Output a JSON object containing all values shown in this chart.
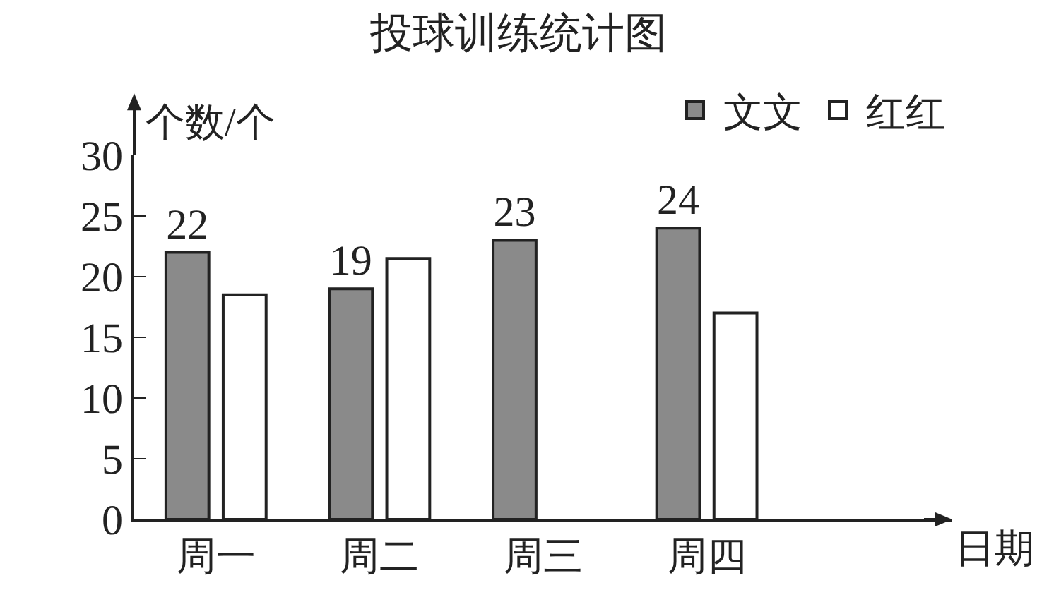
{
  "chart_data": {
    "type": "bar",
    "title": "投球训练统计图",
    "xlabel": "日期",
    "ylabel": "个数/个",
    "categories": [
      "周一",
      "周二",
      "周三",
      "周四"
    ],
    "series": [
      {
        "name": "文文",
        "color": "#8a8a8a",
        "values": [
          22,
          19,
          23,
          24
        ],
        "value_labels": [
          "22",
          "19",
          "23",
          "24"
        ]
      },
      {
        "name": "红红",
        "color": "#ffffff",
        "values": [
          18.5,
          21.5,
          null,
          17
        ]
      }
    ],
    "ylim": [
      0,
      30
    ],
    "yticks": [
      0,
      5,
      10,
      15,
      20,
      25,
      30
    ],
    "grid": false,
    "legend": "top right"
  }
}
